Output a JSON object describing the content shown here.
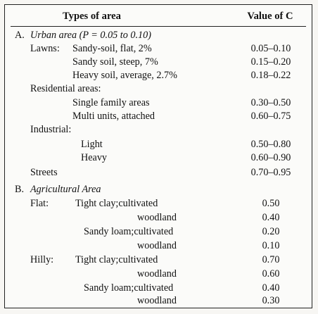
{
  "table": {
    "header": {
      "types_label": "Types of area",
      "value_label": "Value of C"
    },
    "section_a": {
      "letter": "A.",
      "title": "Urban area (P = 0.05 to 0.10)"
    },
    "lawns": {
      "label": "Lawns:",
      "rows": [
        {
          "text": "Sandy-soil, flat, 2%",
          "value": "0.05–0.10"
        },
        {
          "text": "Sandy soil, steep, 7%",
          "value": "0.15–0.20"
        },
        {
          "text": "Heavy soil, average, 2.7%",
          "value": "0.18–0.22"
        }
      ]
    },
    "residential": {
      "label": "Residential areas:",
      "rows": [
        {
          "text": "Single family areas",
          "value": "0.30–0.50"
        },
        {
          "text": "Multi units, attached",
          "value": "0.60–0.75"
        }
      ]
    },
    "industrial": {
      "label": "Industrial:",
      "rows": [
        {
          "text": "Light",
          "value": "0.50–0.80"
        },
        {
          "text": "Heavy",
          "value": "0.60–0.90"
        }
      ]
    },
    "streets": {
      "text": "Streets",
      "value": "0.70–0.95"
    },
    "section_b": {
      "letter": "B.",
      "title": "Agricultural Area"
    },
    "flat": {
      "label": "Flat:",
      "rows": [
        {
          "text": "Tight clay;cultivated",
          "value": "0.50"
        },
        {
          "text": "woodland",
          "value": "0.40"
        },
        {
          "text": "Sandy loam;cultivated",
          "value": "0.20"
        },
        {
          "text": "woodland",
          "value": "0.10"
        }
      ]
    },
    "hilly": {
      "label": "Hilly:",
      "rows": [
        {
          "text": "Tight clay;cultivated",
          "value": "0.70"
        },
        {
          "text": "woodland",
          "value": "0.60"
        },
        {
          "text": "Sandy loam;cultivated",
          "value": "0.40"
        },
        {
          "text": "woodland",
          "value": "0.30"
        }
      ]
    }
  }
}
